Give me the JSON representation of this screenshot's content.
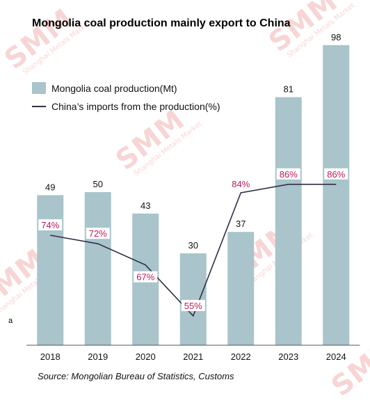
{
  "chart_data": {
    "type": "bar",
    "title": "Mongolia coal production mainly export to China",
    "categories": [
      "2018",
      "2019",
      "2020",
      "2021",
      "2022",
      "2023",
      "2024"
    ],
    "series": [
      {
        "name": "Mongolia coal production(Mt)",
        "type": "bar",
        "values": [
          49,
          50,
          43,
          30,
          37,
          81,
          98
        ],
        "labels": [
          "49",
          "50",
          "43",
          "30",
          "37",
          "81",
          "98"
        ],
        "color": "#a9c4cb"
      },
      {
        "name": "China’s imports from the production(%)",
        "type": "line",
        "values": [
          74,
          72,
          67,
          55,
          84,
          86,
          86
        ],
        "labels": [
          "74%",
          "72%",
          "67%",
          "55%",
          "84%",
          "86%",
          "86%"
        ],
        "color": "#2f2f45",
        "label_color": "#c0185a"
      }
    ],
    "legend_position": "top-left",
    "grid": false,
    "source": "Source: Mongolian Bureau of Statistics, Customs"
  },
  "watermark": {
    "brand": "SMM",
    "tagline": "Shanghai Metals Market",
    "color": "#f4b3b3"
  },
  "stray_text": "a"
}
